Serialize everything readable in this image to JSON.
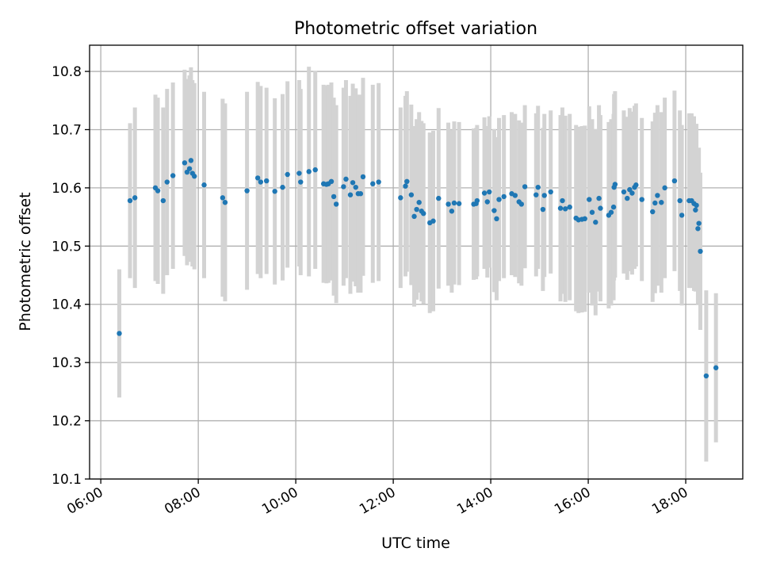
{
  "chart_data": {
    "type": "scatter",
    "title": "Photometric offset variation",
    "xlabel": "UTC time",
    "ylabel": "Photometric offset",
    "x_unit": "hours UTC",
    "xlim": [
      5.77,
      19.17
    ],
    "ylim": [
      10.1,
      10.845
    ],
    "grid": true,
    "x_ticks": [
      6,
      8,
      10,
      12,
      14,
      16,
      18
    ],
    "x_tick_labels": [
      "06:00",
      "08:00",
      "10:00",
      "12:00",
      "14:00",
      "16:00",
      "18:00"
    ],
    "y_ticks": [
      10.1,
      10.2,
      10.3,
      10.4,
      10.5,
      10.6,
      10.7,
      10.8
    ],
    "y_tick_labels": [
      "10.1",
      "10.2",
      "10.3",
      "10.4",
      "10.5",
      "10.6",
      "10.7",
      "10.8"
    ],
    "colors": {
      "point": "#1f77b4",
      "errorbar": "#d3d3d3",
      "grid": "#b0b0b0"
    },
    "series": [
      {
        "marker": "point",
        "x": [
          6.38,
          6.6,
          6.7,
          7.12,
          7.17,
          7.28,
          7.36,
          7.48,
          7.72,
          7.77,
          7.82,
          7.85,
          7.88,
          7.92,
          8.12,
          8.5,
          8.55,
          9.0,
          9.22,
          9.28,
          9.4,
          9.57,
          9.73,
          9.83,
          10.07,
          10.1,
          10.27,
          10.4,
          10.57,
          10.63,
          10.67,
          10.73,
          10.78,
          10.83,
          10.98,
          11.03,
          11.12,
          11.17,
          11.23,
          11.28,
          11.33,
          11.38,
          11.58,
          11.7,
          12.15,
          12.25,
          12.28,
          12.37,
          12.43,
          12.48,
          12.53,
          12.58,
          12.62,
          12.75,
          12.82,
          12.93,
          13.13,
          13.2,
          13.25,
          13.35,
          13.65,
          13.7,
          13.72,
          13.87,
          13.93,
          13.97,
          14.07,
          14.12,
          14.17,
          14.27,
          14.43,
          14.5,
          14.58,
          14.63,
          14.7,
          14.93,
          14.97,
          15.07,
          15.1,
          15.23,
          15.43,
          15.47,
          15.53,
          15.62,
          15.75,
          15.8,
          15.87,
          15.93,
          16.02,
          16.08,
          16.15,
          16.22,
          16.25,
          16.42,
          16.47,
          16.52,
          16.53,
          16.55,
          16.73,
          16.8,
          16.85,
          16.9,
          16.95,
          16.98,
          17.1,
          17.32,
          17.37,
          17.42,
          17.5,
          17.57,
          17.77,
          17.88,
          17.92,
          18.07,
          18.12,
          18.17,
          18.2,
          18.22,
          18.25,
          18.27,
          18.3,
          18.42,
          18.62
        ],
        "y": [
          10.35,
          10.578,
          10.583,
          10.6,
          10.595,
          10.578,
          10.61,
          10.621,
          10.643,
          10.627,
          10.633,
          10.647,
          10.625,
          10.62,
          10.605,
          10.583,
          10.575,
          10.595,
          10.617,
          10.61,
          10.612,
          10.594,
          10.601,
          10.623,
          10.625,
          10.61,
          10.628,
          10.631,
          10.607,
          10.606,
          10.607,
          10.611,
          10.585,
          10.572,
          10.602,
          10.615,
          10.588,
          10.609,
          10.601,
          10.59,
          10.59,
          10.619,
          10.607,
          10.61,
          10.583,
          10.603,
          10.611,
          10.588,
          10.551,
          10.563,
          10.575,
          10.56,
          10.556,
          10.54,
          10.543,
          10.582,
          10.572,
          10.56,
          10.574,
          10.573,
          10.572,
          10.573,
          10.578,
          10.591,
          10.576,
          10.593,
          10.561,
          10.547,
          10.58,
          10.585,
          10.59,
          10.587,
          10.576,
          10.572,
          10.602,
          10.588,
          10.601,
          10.563,
          10.587,
          10.593,
          10.565,
          10.578,
          10.564,
          10.567,
          10.548,
          10.545,
          10.546,
          10.547,
          10.58,
          10.558,
          10.541,
          10.582,
          10.565,
          10.553,
          10.558,
          10.567,
          10.601,
          10.606,
          10.593,
          10.582,
          10.597,
          10.591,
          10.601,
          10.605,
          10.58,
          10.559,
          10.574,
          10.587,
          10.575,
          10.6,
          10.612,
          10.578,
          10.553,
          10.578,
          10.578,
          10.573,
          10.562,
          10.57,
          10.53,
          10.539,
          10.491,
          10.277,
          10.291
        ],
        "yerr": [
          0.11,
          0.133,
          0.155,
          0.16,
          0.16,
          0.16,
          0.16,
          0.16,
          0.16,
          0.16,
          0.16,
          0.16,
          0.16,
          0.16,
          0.16,
          0.17,
          0.17,
          0.17,
          0.165,
          0.165,
          0.16,
          0.16,
          0.16,
          0.16,
          0.16,
          0.16,
          0.18,
          0.17,
          0.17,
          0.17,
          0.17,
          0.17,
          0.17,
          0.17,
          0.17,
          0.17,
          0.17,
          0.17,
          0.17,
          0.17,
          0.17,
          0.17,
          0.17,
          0.17,
          0.155,
          0.155,
          0.155,
          0.155,
          0.155,
          0.155,
          0.155,
          0.155,
          0.155,
          0.155,
          0.155,
          0.155,
          0.14,
          0.14,
          0.14,
          0.14,
          0.13,
          0.13,
          0.13,
          0.13,
          0.13,
          0.13,
          0.14,
          0.14,
          0.14,
          0.14,
          0.14,
          0.14,
          0.14,
          0.14,
          0.14,
          0.14,
          0.14,
          0.14,
          0.14,
          0.14,
          0.16,
          0.16,
          0.16,
          0.16,
          0.16,
          0.16,
          0.16,
          0.16,
          0.16,
          0.16,
          0.16,
          0.16,
          0.16,
          0.16,
          0.16,
          0.16,
          0.16,
          0.16,
          0.14,
          0.14,
          0.14,
          0.14,
          0.14,
          0.14,
          0.14,
          0.155,
          0.155,
          0.155,
          0.155,
          0.155,
          0.155,
          0.155,
          0.155,
          0.15,
          0.15,
          0.15,
          0.14,
          0.14,
          0.13,
          0.13,
          0.135,
          0.147,
          0.128
        ]
      }
    ]
  }
}
